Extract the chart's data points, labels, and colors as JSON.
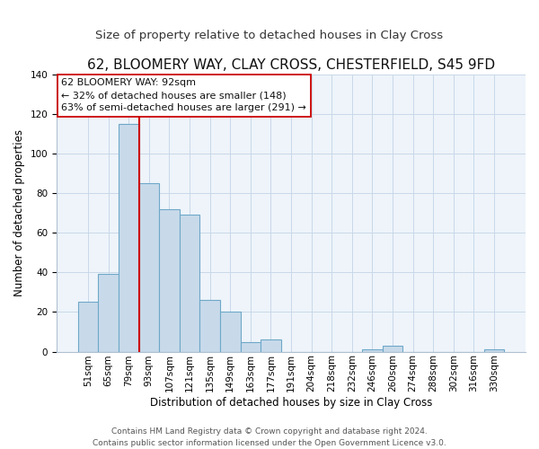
{
  "title": "62, BLOOMERY WAY, CLAY CROSS, CHESTERFIELD, S45 9FD",
  "subtitle": "Size of property relative to detached houses in Clay Cross",
  "xlabel": "Distribution of detached houses by size in Clay Cross",
  "ylabel": "Number of detached properties",
  "bar_color": "#c8daea",
  "bar_edge_color": "#6ea8c8",
  "bin_labels": [
    "51sqm",
    "65sqm",
    "79sqm",
    "93sqm",
    "107sqm",
    "121sqm",
    "135sqm",
    "149sqm",
    "163sqm",
    "177sqm",
    "191sqm",
    "204sqm",
    "218sqm",
    "232sqm",
    "246sqm",
    "260sqm",
    "274sqm",
    "288sqm",
    "302sqm",
    "316sqm",
    "330sqm"
  ],
  "bar_heights": [
    25,
    39,
    115,
    85,
    72,
    69,
    26,
    20,
    5,
    6,
    0,
    0,
    0,
    0,
    1,
    3,
    0,
    0,
    0,
    0,
    1
  ],
  "vline_color": "#cc0000",
  "ylim": [
    0,
    140
  ],
  "yticks": [
    0,
    20,
    40,
    60,
    80,
    100,
    120,
    140
  ],
  "annotation_line1": "62 BLOOMERY WAY: 92sqm",
  "annotation_line2": "← 32% of detached houses are smaller (148)",
  "annotation_line3": "63% of semi-detached houses are larger (291) →",
  "annotation_box_color": "#ffffff",
  "annotation_box_edge": "#cc0000",
  "footer_line1": "Contains HM Land Registry data © Crown copyright and database right 2024.",
  "footer_line2": "Contains public sector information licensed under the Open Government Licence v3.0.",
  "title_fontsize": 11,
  "subtitle_fontsize": 9.5,
  "axis_label_fontsize": 8.5,
  "tick_fontsize": 7.5,
  "annotation_fontsize": 8,
  "footer_fontsize": 6.5,
  "bg_color": "#eef4fa"
}
